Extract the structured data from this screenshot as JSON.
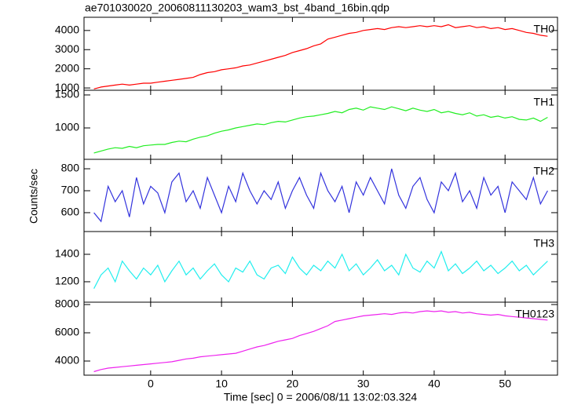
{
  "chart_data": [
    {
      "type": "line",
      "title": "ae701030020_20060811130203_wam3_bst_4band_16bin.qdp",
      "label": "TH0",
      "color": "#ff0000",
      "x": [
        -8,
        -7,
        -6,
        -5,
        -4,
        -3,
        -2,
        -1,
        0,
        1,
        2,
        3,
        4,
        5,
        6,
        7,
        8,
        9,
        10,
        11,
        12,
        13,
        14,
        15,
        16,
        17,
        18,
        19,
        20,
        21,
        22,
        23,
        24,
        25,
        26,
        27,
        28,
        29,
        30,
        31,
        32,
        33,
        34,
        35,
        36,
        37,
        38,
        39,
        40,
        41,
        42,
        43,
        44,
        45,
        46,
        47,
        48,
        49,
        50,
        51,
        52,
        53,
        54,
        55,
        56
      ],
      "values": [
        950,
        1050,
        1100,
        1150,
        1200,
        1150,
        1200,
        1250,
        1250,
        1300,
        1350,
        1400,
        1450,
        1500,
        1550,
        1700,
        1800,
        1850,
        1950,
        2000,
        2050,
        2150,
        2200,
        2300,
        2400,
        2500,
        2600,
        2700,
        2850,
        2950,
        3050,
        3200,
        3300,
        3550,
        3650,
        3750,
        3850,
        3900,
        4000,
        4050,
        4100,
        4050,
        4150,
        4200,
        4150,
        4200,
        4250,
        4200,
        4250,
        4200,
        4300,
        4150,
        4200,
        4250,
        4150,
        4200,
        4100,
        4150,
        4050,
        4100,
        4000,
        3900,
        3850,
        3750,
        3700
      ],
      "xlim": [
        -9.4,
        57.4
      ],
      "ylim": [
        880,
        4690
      ],
      "yticks": [
        1000,
        2000,
        3000,
        4000
      ]
    },
    {
      "type": "line",
      "label": "TH1",
      "color": "#22ee22",
      "x": [
        -8,
        -7,
        -6,
        -5,
        -4,
        -3,
        -2,
        -1,
        0,
        1,
        2,
        3,
        4,
        5,
        6,
        7,
        8,
        9,
        10,
        11,
        12,
        13,
        14,
        15,
        16,
        17,
        18,
        19,
        20,
        21,
        22,
        23,
        24,
        25,
        26,
        27,
        28,
        29,
        30,
        31,
        32,
        33,
        34,
        35,
        36,
        37,
        38,
        39,
        40,
        41,
        42,
        43,
        44,
        45,
        46,
        47,
        48,
        49,
        50,
        51,
        52,
        53,
        54,
        55,
        56
      ],
      "values": [
        620,
        650,
        680,
        700,
        690,
        720,
        700,
        730,
        740,
        750,
        750,
        780,
        800,
        790,
        830,
        860,
        880,
        920,
        950,
        970,
        1000,
        1020,
        1040,
        1060,
        1050,
        1080,
        1100,
        1090,
        1120,
        1150,
        1170,
        1180,
        1200,
        1220,
        1250,
        1230,
        1280,
        1300,
        1270,
        1320,
        1300,
        1280,
        1320,
        1290,
        1260,
        1300,
        1270,
        1250,
        1280,
        1230,
        1250,
        1220,
        1200,
        1230,
        1180,
        1200,
        1160,
        1180,
        1150,
        1170,
        1130,
        1120,
        1150,
        1100,
        1160
      ],
      "xlim": [
        -9.4,
        57.4
      ],
      "ylim": [
        524,
        1571
      ],
      "yticks": [
        1000,
        1500
      ]
    },
    {
      "type": "line",
      "label": "TH2",
      "color": "#3333dd",
      "ylabel": "Counts/sec",
      "x": [
        -8,
        -7,
        -6,
        -5,
        -4,
        -3,
        -2,
        -1,
        0,
        1,
        2,
        3,
        4,
        5,
        6,
        7,
        8,
        9,
        10,
        11,
        12,
        13,
        14,
        15,
        16,
        17,
        18,
        19,
        20,
        21,
        22,
        23,
        24,
        25,
        26,
        27,
        28,
        29,
        30,
        31,
        32,
        33,
        34,
        35,
        36,
        37,
        38,
        39,
        40,
        41,
        42,
        43,
        44,
        45,
        46,
        47,
        48,
        49,
        50,
        51,
        52,
        53,
        54,
        55,
        56
      ],
      "values": [
        600,
        560,
        720,
        650,
        700,
        580,
        760,
        640,
        720,
        690,
        600,
        740,
        780,
        650,
        700,
        620,
        760,
        680,
        600,
        720,
        650,
        780,
        700,
        640,
        700,
        660,
        740,
        620,
        700,
        760,
        680,
        620,
        780,
        700,
        650,
        720,
        600,
        740,
        680,
        760,
        700,
        640,
        800,
        680,
        620,
        720,
        760,
        660,
        600,
        740,
        700,
        780,
        650,
        700,
        620,
        760,
        680,
        720,
        600,
        740,
        700,
        660,
        760,
        640,
        700
      ],
      "xlim": [
        -9.4,
        57.4
      ],
      "ylim": [
        514,
        843
      ],
      "yticks": [
        600,
        700,
        800
      ]
    },
    {
      "type": "line",
      "label": "TH3",
      "color": "#22eeee",
      "x": [
        -8,
        -7,
        -6,
        -5,
        -4,
        -3,
        -2,
        -1,
        0,
        1,
        2,
        3,
        4,
        5,
        6,
        7,
        8,
        9,
        10,
        11,
        12,
        13,
        14,
        15,
        16,
        17,
        18,
        19,
        20,
        21,
        22,
        23,
        24,
        25,
        26,
        27,
        28,
        29,
        30,
        31,
        32,
        33,
        34,
        35,
        36,
        37,
        38,
        39,
        40,
        41,
        42,
        43,
        44,
        45,
        46,
        47,
        48,
        49,
        50,
        51,
        52,
        53,
        54,
        55,
        56
      ],
      "values": [
        1150,
        1250,
        1300,
        1200,
        1350,
        1280,
        1220,
        1300,
        1250,
        1320,
        1200,
        1280,
        1350,
        1250,
        1300,
        1220,
        1280,
        1330,
        1250,
        1200,
        1300,
        1270,
        1350,
        1250,
        1220,
        1300,
        1320,
        1260,
        1380,
        1300,
        1250,
        1320,
        1280,
        1350,
        1300,
        1400,
        1280,
        1330,
        1250,
        1300,
        1360,
        1280,
        1320,
        1250,
        1400,
        1300,
        1270,
        1350,
        1300,
        1420,
        1280,
        1330,
        1260,
        1300,
        1350,
        1280,
        1320,
        1260,
        1300,
        1350,
        1280,
        1320,
        1250,
        1300,
        1350
      ],
      "xlim": [
        -9.4,
        57.4
      ],
      "ylim": [
        1051,
        1566
      ],
      "yticks": [
        1200,
        1400
      ]
    },
    {
      "type": "line",
      "label": "TH0123",
      "color": "#ee22ee",
      "xlabel": "Time [sec] 0 = 2006/08/11 13:02:03.324",
      "x": [
        -8,
        -7,
        -6,
        -5,
        -4,
        -3,
        -2,
        -1,
        0,
        1,
        2,
        3,
        4,
        5,
        6,
        7,
        8,
        9,
        10,
        11,
        12,
        13,
        14,
        15,
        16,
        17,
        18,
        19,
        20,
        21,
        22,
        23,
        24,
        25,
        26,
        27,
        28,
        29,
        30,
        31,
        32,
        33,
        34,
        35,
        36,
        37,
        38,
        39,
        40,
        41,
        42,
        43,
        44,
        45,
        46,
        47,
        48,
        49,
        50,
        51,
        52,
        53,
        54,
        55,
        56
      ],
      "values": [
        3250,
        3400,
        3500,
        3550,
        3600,
        3650,
        3700,
        3750,
        3800,
        3850,
        3900,
        3950,
        4050,
        4150,
        4200,
        4300,
        4350,
        4400,
        4450,
        4500,
        4550,
        4700,
        4850,
        5000,
        5100,
        5250,
        5400,
        5500,
        5600,
        5800,
        5950,
        6100,
        6300,
        6500,
        6800,
        6900,
        7000,
        7100,
        7200,
        7250,
        7300,
        7350,
        7300,
        7400,
        7450,
        7400,
        7500,
        7550,
        7500,
        7550,
        7450,
        7500,
        7400,
        7450,
        7350,
        7300,
        7250,
        7300,
        7200,
        7150,
        7100,
        7050,
        7000,
        6950,
        6900
      ],
      "xlim": [
        -9.4,
        57.4
      ],
      "ylim": [
        3000,
        8167
      ],
      "yticks": [
        4000,
        6000,
        8000
      ],
      "xticks": [
        0,
        10,
        20,
        30,
        40,
        50
      ]
    }
  ]
}
